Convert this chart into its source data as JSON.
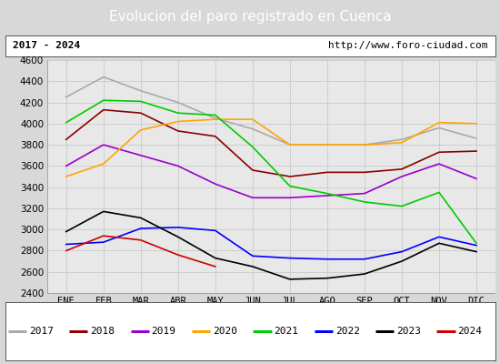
{
  "title": "Evolucion del paro registrado en Cuenca",
  "subtitle_left": "2017 - 2024",
  "subtitle_right": "http://www.foro-ciudad.com",
  "months": [
    "ENE",
    "FEB",
    "MAR",
    "ABR",
    "MAY",
    "JUN",
    "JUL",
    "AGO",
    "SEP",
    "OCT",
    "NOV",
    "DIC"
  ],
  "ylim": [
    2400,
    4600
  ],
  "yticks": [
    2400,
    2600,
    2800,
    3000,
    3200,
    3400,
    3600,
    3800,
    4000,
    4200,
    4400,
    4600
  ],
  "series": {
    "2017": {
      "color": "#aaaaaa",
      "data": [
        4250,
        4440,
        4310,
        4200,
        4050,
        3950,
        3800,
        3800,
        3800,
        3850,
        3960,
        3860
      ]
    },
    "2018": {
      "color": "#8b0000",
      "data": [
        3850,
        4130,
        4100,
        3930,
        3880,
        3560,
        3500,
        3540,
        3540,
        3570,
        3730,
        3740
      ]
    },
    "2019": {
      "color": "#9900cc",
      "data": [
        3600,
        3800,
        3700,
        3600,
        3430,
        3300,
        3300,
        3320,
        3340,
        3500,
        3620,
        3480
      ]
    },
    "2020": {
      "color": "#ffa500",
      "data": [
        3500,
        3620,
        3940,
        4020,
        4040,
        4040,
        3800,
        3800,
        3800,
        3820,
        4010,
        4000
      ]
    },
    "2021": {
      "color": "#00cc00",
      "data": [
        4010,
        4220,
        4210,
        4100,
        4080,
        3780,
        3410,
        3340,
        3260,
        3220,
        3350,
        2870
      ]
    },
    "2022": {
      "color": "#0000ff",
      "data": [
        2860,
        2880,
        3010,
        3020,
        2990,
        2750,
        2730,
        2720,
        2720,
        2790,
        2930,
        2850
      ]
    },
    "2023": {
      "color": "#000000",
      "data": [
        2980,
        3170,
        3110,
        2930,
        2730,
        2650,
        2530,
        2540,
        2580,
        2700,
        2870,
        2790
      ]
    },
    "2024": {
      "color": "#cc0000",
      "data": [
        2800,
        2940,
        2900,
        2760,
        2650
      ]
    }
  },
  "title_bg": "#4472c4",
  "title_color": "white",
  "title_fontsize": 11,
  "subtitle_fontsize": 8,
  "tick_fontsize": 7.5,
  "legend_fontsize": 8,
  "outer_bg": "#d8d8d8",
  "inner_bg": "#e8e8e8",
  "plot_bg": "#e8e8e8"
}
